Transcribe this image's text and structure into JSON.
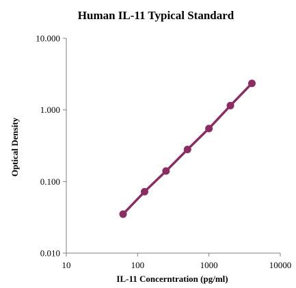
{
  "chart_data": {
    "type": "line",
    "title": "Human IL-11 Typical Standard",
    "xlabel": "IL-11 Concerntration (pg/ml)",
    "ylabel": "Optical Density",
    "x_scale": "log",
    "y_scale": "log",
    "xlim": [
      10,
      10000
    ],
    "ylim": [
      0.01,
      10
    ],
    "x_ticks": [
      "10",
      "100",
      "1000",
      "10000"
    ],
    "y_ticks": [
      "0.010",
      "0.100",
      "1.000",
      "10.000"
    ],
    "grid": false,
    "series": [
      {
        "color": "#8B2D63",
        "x": [
          62.5,
          125,
          250,
          500,
          1000,
          2000,
          4000
        ],
        "y": [
          0.035,
          0.072,
          0.14,
          0.28,
          0.55,
          1.15,
          2.35
        ]
      }
    ]
  }
}
